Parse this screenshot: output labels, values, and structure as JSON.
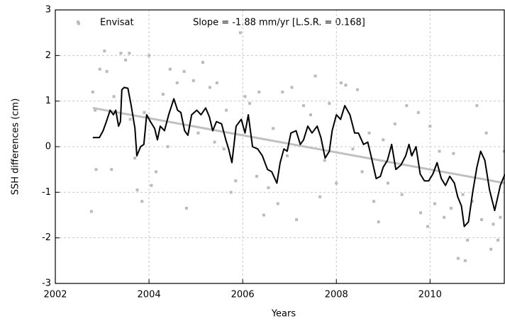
{
  "chart_data": {
    "type": "line",
    "xlabel": "Years",
    "ylabel": "SSH differences (cm)",
    "annotation": "Slope = -1.88 mm/yr [L.S.R. = 0.168]",
    "xlim": [
      2002,
      2011.6
    ],
    "ylim": [
      -3,
      3
    ],
    "xticks": [
      2002,
      2004,
      2006,
      2008,
      2010
    ],
    "yticks": [
      -3,
      -2,
      -1,
      0,
      1,
      2,
      3
    ],
    "grid": true,
    "legend": "top-left",
    "series": [
      {
        "name": "Envisat",
        "type": "scatter",
        "color": "#bbbbbb",
        "x": [
          2002.5,
          2002.77,
          2002.8,
          2002.85,
          2002.87,
          2002.95,
          2003.05,
          2003.1,
          2003.2,
          2003.25,
          2003.4,
          2003.5,
          2003.58,
          2003.6,
          2003.7,
          2003.75,
          2003.85,
          2003.9,
          2004.0,
          2004.05,
          2004.15,
          2004.3,
          2004.4,
          2004.45,
          2004.6,
          2004.75,
          2004.8,
          2004.95,
          2005.05,
          2005.15,
          2005.3,
          2005.4,
          2005.45,
          2005.6,
          2005.65,
          2005.75,
          2005.85,
          2005.95,
          2006.05,
          2006.15,
          2006.3,
          2006.35,
          2006.45,
          2006.55,
          2006.65,
          2006.75,
          2006.85,
          2006.95,
          2007.05,
          2007.15,
          2007.3,
          2007.45,
          2007.55,
          2007.65,
          2007.75,
          2007.85,
          2008.0,
          2008.1,
          2008.2,
          2008.35,
          2008.45,
          2008.55,
          2008.7,
          2008.8,
          2008.9,
          2009.0,
          2009.1,
          2009.25,
          2009.4,
          2009.5,
          2009.6,
          2009.75,
          2009.8,
          2009.95,
          2010.0,
          2010.1,
          2010.2,
          2010.3,
          2010.45,
          2010.5,
          2010.6,
          2010.7,
          2010.75,
          2010.8,
          2010.9,
          2011.0,
          2011.1,
          2011.2,
          2011.3,
          2011.35,
          2011.45,
          2011.5,
          2011.58
        ],
        "values": [
          2.7,
          -1.42,
          1.2,
          0.8,
          -0.5,
          1.7,
          2.1,
          1.65,
          -0.5,
          1.1,
          2.05,
          1.9,
          2.05,
          0.6,
          -0.25,
          -0.95,
          -1.2,
          0.75,
          2.0,
          -0.85,
          -0.55,
          1.15,
          0.0,
          1.7,
          1.4,
          1.65,
          -1.35,
          1.45,
          0.3,
          1.85,
          1.3,
          0.1,
          1.4,
          -0.05,
          0.8,
          -1.0,
          -0.75,
          2.5,
          1.1,
          0.95,
          -0.65,
          1.2,
          -1.5,
          -0.9,
          0.4,
          -1.25,
          1.2,
          -0.2,
          1.3,
          -1.6,
          0.9,
          0.7,
          1.55,
          -1.1,
          -0.3,
          0.95,
          -0.8,
          1.4,
          1.35,
          -0.05,
          1.25,
          -0.55,
          0.3,
          -1.2,
          -1.65,
          0.15,
          -0.8,
          0.5,
          -1.05,
          0.9,
          -0.15,
          0.75,
          -1.45,
          -1.75,
          0.45,
          -1.25,
          -0.1,
          -1.55,
          -1.35,
          -0.15,
          -2.45,
          -1.05,
          -2.5,
          -2.05,
          -1.2,
          0.9,
          -1.6,
          0.3,
          -2.25,
          -1.7,
          -2.05,
          -1.55,
          -0.1
        ]
      },
      {
        "type": "line",
        "color": "#000000",
        "x": [
          2002.8,
          2002.94,
          2003.02,
          2003.09,
          2003.17,
          2003.24,
          2003.29,
          2003.35,
          2003.39,
          2003.42,
          2003.47,
          2003.55,
          2003.62,
          2003.7,
          2003.74,
          2003.82,
          2003.89,
          2003.95,
          2004.03,
          2004.12,
          2004.18,
          2004.24,
          2004.33,
          2004.42,
          2004.53,
          2004.61,
          2004.68,
          2004.76,
          2004.83,
          2004.91,
          2005.02,
          2005.11,
          2005.21,
          2005.29,
          2005.36,
          2005.44,
          2005.55,
          2005.64,
          2005.7,
          2005.77,
          2005.86,
          2005.97,
          2006.05,
          2006.12,
          2006.21,
          2006.32,
          2006.42,
          2006.53,
          2006.62,
          2006.73,
          2006.8,
          2006.88,
          2006.95,
          2007.03,
          2007.14,
          2007.23,
          2007.3,
          2007.39,
          2007.48,
          2007.59,
          2007.67,
          2007.76,
          2007.85,
          2007.91,
          2008.0,
          2008.09,
          2008.18,
          2008.29,
          2008.39,
          2008.47,
          2008.58,
          2008.67,
          2008.74,
          2008.85,
          2008.94,
          2009.0,
          2009.09,
          2009.18,
          2009.27,
          2009.38,
          2009.48,
          2009.55,
          2009.61,
          2009.7,
          2009.79,
          2009.88,
          2009.97,
          2010.06,
          2010.15,
          2010.24,
          2010.33,
          2010.42,
          2010.52,
          2010.59,
          2010.67,
          2010.73,
          2010.82,
          2010.91,
          2011.0,
          2011.08,
          2011.17,
          2011.27,
          2011.38,
          2011.5,
          2011.6
        ],
        "values": [
          0.2,
          0.2,
          0.35,
          0.55,
          0.8,
          0.7,
          0.8,
          0.45,
          0.55,
          1.25,
          1.3,
          1.28,
          0.9,
          0.4,
          -0.2,
          0.0,
          0.05,
          0.7,
          0.55,
          0.4,
          0.15,
          0.45,
          0.35,
          0.7,
          1.05,
          0.8,
          0.75,
          0.35,
          0.25,
          0.7,
          0.8,
          0.7,
          0.85,
          0.65,
          0.35,
          0.55,
          0.5,
          0.15,
          -0.05,
          -0.35,
          0.45,
          0.6,
          0.3,
          0.7,
          0.0,
          -0.05,
          -0.2,
          -0.5,
          -0.55,
          -0.8,
          -0.35,
          -0.05,
          -0.1,
          0.3,
          0.35,
          0.05,
          0.15,
          0.45,
          0.3,
          0.45,
          0.2,
          -0.25,
          -0.1,
          0.35,
          0.7,
          0.6,
          0.9,
          0.7,
          0.3,
          0.3,
          0.05,
          0.1,
          -0.2,
          -0.7,
          -0.65,
          -0.45,
          -0.3,
          0.05,
          -0.5,
          -0.4,
          -0.2,
          0.05,
          -0.2,
          0.0,
          -0.6,
          -0.75,
          -0.75,
          -0.6,
          -0.35,
          -0.7,
          -0.85,
          -0.65,
          -0.8,
          -1.1,
          -1.3,
          -1.75,
          -1.65,
          -1.0,
          -0.45,
          -0.1,
          -0.3,
          -0.95,
          -1.4,
          -0.85,
          -0.6
        ]
      },
      {
        "type": "line",
        "color": "#c0c0c0",
        "x": [
          2002.8,
          2011.6
        ],
        "values": [
          0.85,
          -0.8
        ]
      }
    ]
  }
}
